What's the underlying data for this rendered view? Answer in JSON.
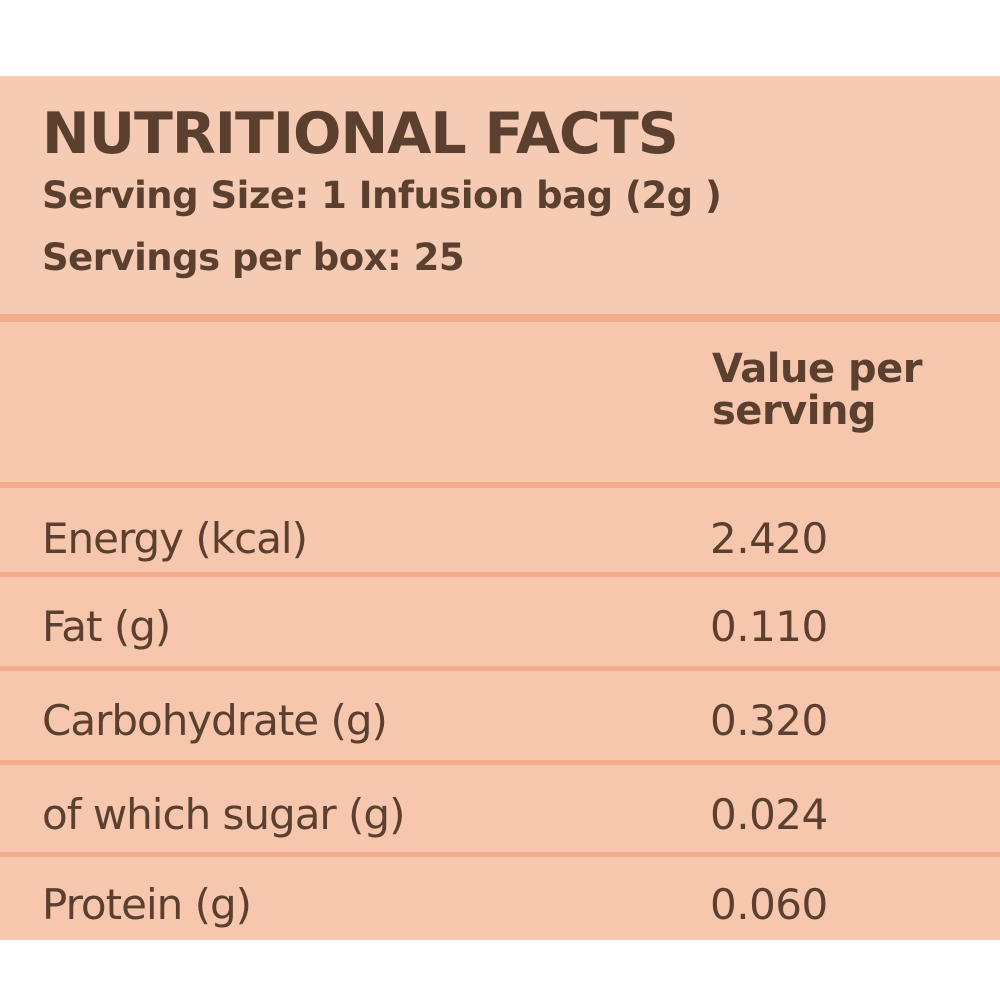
{
  "header": {
    "title": "NUTRITIONAL FACTS",
    "serving_size": "Serving Size: 1 Infusion bag (2g )",
    "servings_per_box": "Servings per box: 25"
  },
  "table": {
    "column_header_line1": "Value per",
    "column_header_line2": "serving",
    "rows": [
      {
        "label": "Energy (kcal)",
        "value": "2.420"
      },
      {
        "label": "Fat (g)",
        "value": "0.110"
      },
      {
        "label": "Carbohydrate (g)",
        "value": "0.320"
      },
      {
        "label": "of which sugar (g)",
        "value": "0.024"
      },
      {
        "label": "Protein (g)",
        "value": "0.060"
      }
    ]
  },
  "colors": {
    "background": "#f6c6ad",
    "text": "#5b3f2f",
    "rule": "#f2ae8c"
  }
}
